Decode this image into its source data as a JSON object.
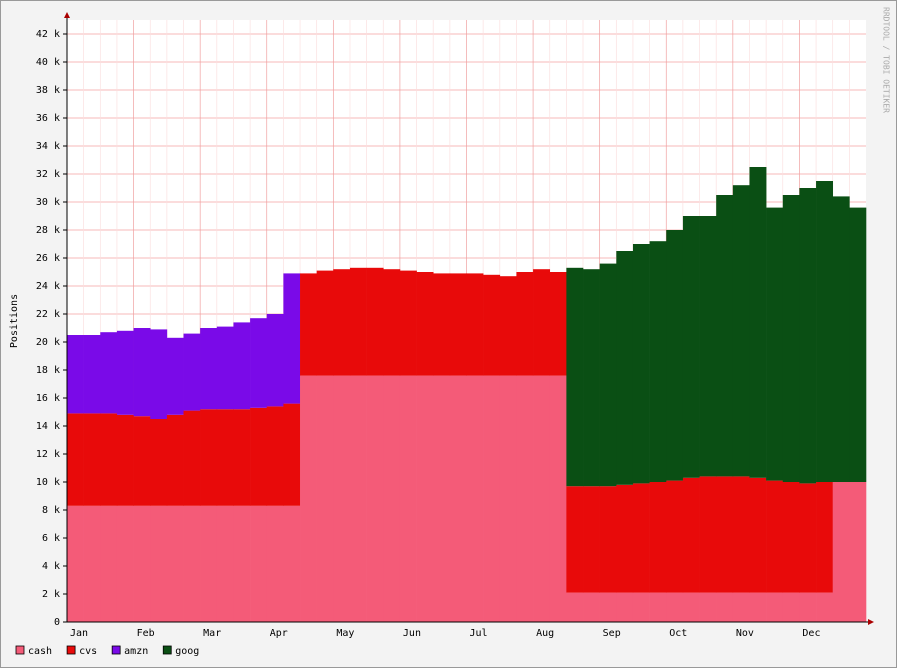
{
  "chart_data": {
    "type": "stacked-area",
    "y_label": "Positions",
    "watermark": "RRDTOOL / TOBI OETIKER",
    "categories": [
      "Jan",
      null,
      null,
      null,
      "Feb",
      null,
      null,
      null,
      "Mar",
      null,
      null,
      null,
      "Apr",
      null,
      null,
      null,
      "May",
      null,
      null,
      null,
      "Jun",
      null,
      null,
      null,
      "Jul",
      null,
      null,
      null,
      "Aug",
      null,
      null,
      null,
      "Sep",
      null,
      null,
      null,
      "Oct",
      null,
      null,
      null,
      "Nov",
      null,
      null,
      null,
      "Dec",
      null,
      null,
      null
    ],
    "series": [
      {
        "name": "cash",
        "color": "#f45b78",
        "values": [
          8300,
          8300,
          8300,
          8300,
          8300,
          8300,
          8300,
          8300,
          8300,
          8300,
          8300,
          8300,
          8300,
          8300,
          17600,
          17600,
          17600,
          17600,
          17600,
          17600,
          17600,
          17600,
          17600,
          17600,
          17600,
          17600,
          17600,
          17600,
          17600,
          17600,
          2100,
          2100,
          2100,
          2100,
          2100,
          2100,
          2100,
          2100,
          2100,
          2100,
          2100,
          2100,
          2100,
          2100,
          2100,
          2100,
          10000,
          10000
        ]
      },
      {
        "name": "cvs",
        "color": "#e80a0a",
        "values": [
          6600,
          6600,
          6600,
          6500,
          6400,
          6200,
          6500,
          6800,
          6900,
          6900,
          6900,
          7000,
          7100,
          7300,
          7300,
          7500,
          7600,
          7700,
          7700,
          7600,
          7500,
          7400,
          7300,
          7300,
          7300,
          7200,
          7100,
          7400,
          7600,
          7400,
          7600,
          7600,
          7600,
          7700,
          7800,
          7900,
          8000,
          8200,
          8300,
          8300,
          8300,
          8200,
          8000,
          7900,
          7800,
          7900,
          null,
          null
        ]
      },
      {
        "name": "amzn",
        "color": "#7a0ae8",
        "values": [
          5600,
          5600,
          5800,
          6000,
          6300,
          6400,
          5500,
          5500,
          5800,
          5900,
          6200,
          6400,
          6600,
          9300,
          null,
          null,
          null,
          null,
          null,
          null,
          null,
          null,
          null,
          null,
          null,
          null,
          null,
          null,
          null,
          null,
          null,
          null,
          null,
          null,
          null,
          null,
          null,
          null,
          null,
          null,
          null,
          null,
          null,
          null,
          null,
          null,
          null,
          null
        ]
      },
      {
        "name": "goog",
        "color": "#0a4f14",
        "values": [
          null,
          null,
          null,
          null,
          null,
          null,
          null,
          null,
          null,
          null,
          null,
          null,
          null,
          null,
          null,
          null,
          null,
          null,
          null,
          null,
          null,
          null,
          null,
          null,
          null,
          null,
          null,
          null,
          null,
          null,
          15600,
          15500,
          15900,
          16700,
          17100,
          17200,
          17900,
          18700,
          18600,
          20100,
          20800,
          22200,
          19500,
          20500,
          21100,
          21500,
          20400,
          19600
        ]
      }
    ],
    "ylim": [
      0,
      43000
    ],
    "yticks": [
      {
        "value": 0,
        "label": "0"
      },
      {
        "value": 2000,
        "label": "2 k"
      },
      {
        "value": 4000,
        "label": "4 k"
      },
      {
        "value": 6000,
        "label": "6 k"
      },
      {
        "value": 8000,
        "label": "8 k"
      },
      {
        "value": 10000,
        "label": "10 k"
      },
      {
        "value": 12000,
        "label": "12 k"
      },
      {
        "value": 14000,
        "label": "14 k"
      },
      {
        "value": 16000,
        "label": "16 k"
      },
      {
        "value": 18000,
        "label": "18 k"
      },
      {
        "value": 20000,
        "label": "20 k"
      },
      {
        "value": 22000,
        "label": "22 k"
      },
      {
        "value": 24000,
        "label": "24 k"
      },
      {
        "value": 26000,
        "label": "26 k"
      },
      {
        "value": 28000,
        "label": "28 k"
      },
      {
        "value": 30000,
        "label": "30 k"
      },
      {
        "value": 32000,
        "label": "32 k"
      },
      {
        "value": 34000,
        "label": "34 k"
      },
      {
        "value": 36000,
        "label": "36 k"
      },
      {
        "value": 38000,
        "label": "38 k"
      },
      {
        "value": 40000,
        "label": "40 k"
      },
      {
        "value": 42000,
        "label": "42 k"
      }
    ],
    "grid": true,
    "legend": "bottom-left"
  }
}
